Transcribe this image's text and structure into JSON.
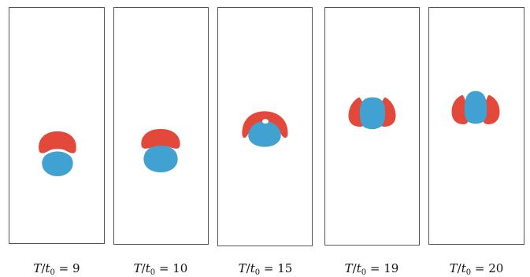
{
  "colors": {
    "red": "#e2493a",
    "blue": "#41a1d0",
    "frame": "#555555",
    "background": "#ffffff"
  },
  "panels": [
    {
      "ratio_label": "T/t0",
      "value": "9"
    },
    {
      "ratio_label": "T/t0",
      "value": "10"
    },
    {
      "ratio_label": "T/t0",
      "value": "15"
    },
    {
      "ratio_label": "T/t0",
      "value": "19"
    },
    {
      "ratio_label": "T/t0",
      "value": "20"
    }
  ]
}
